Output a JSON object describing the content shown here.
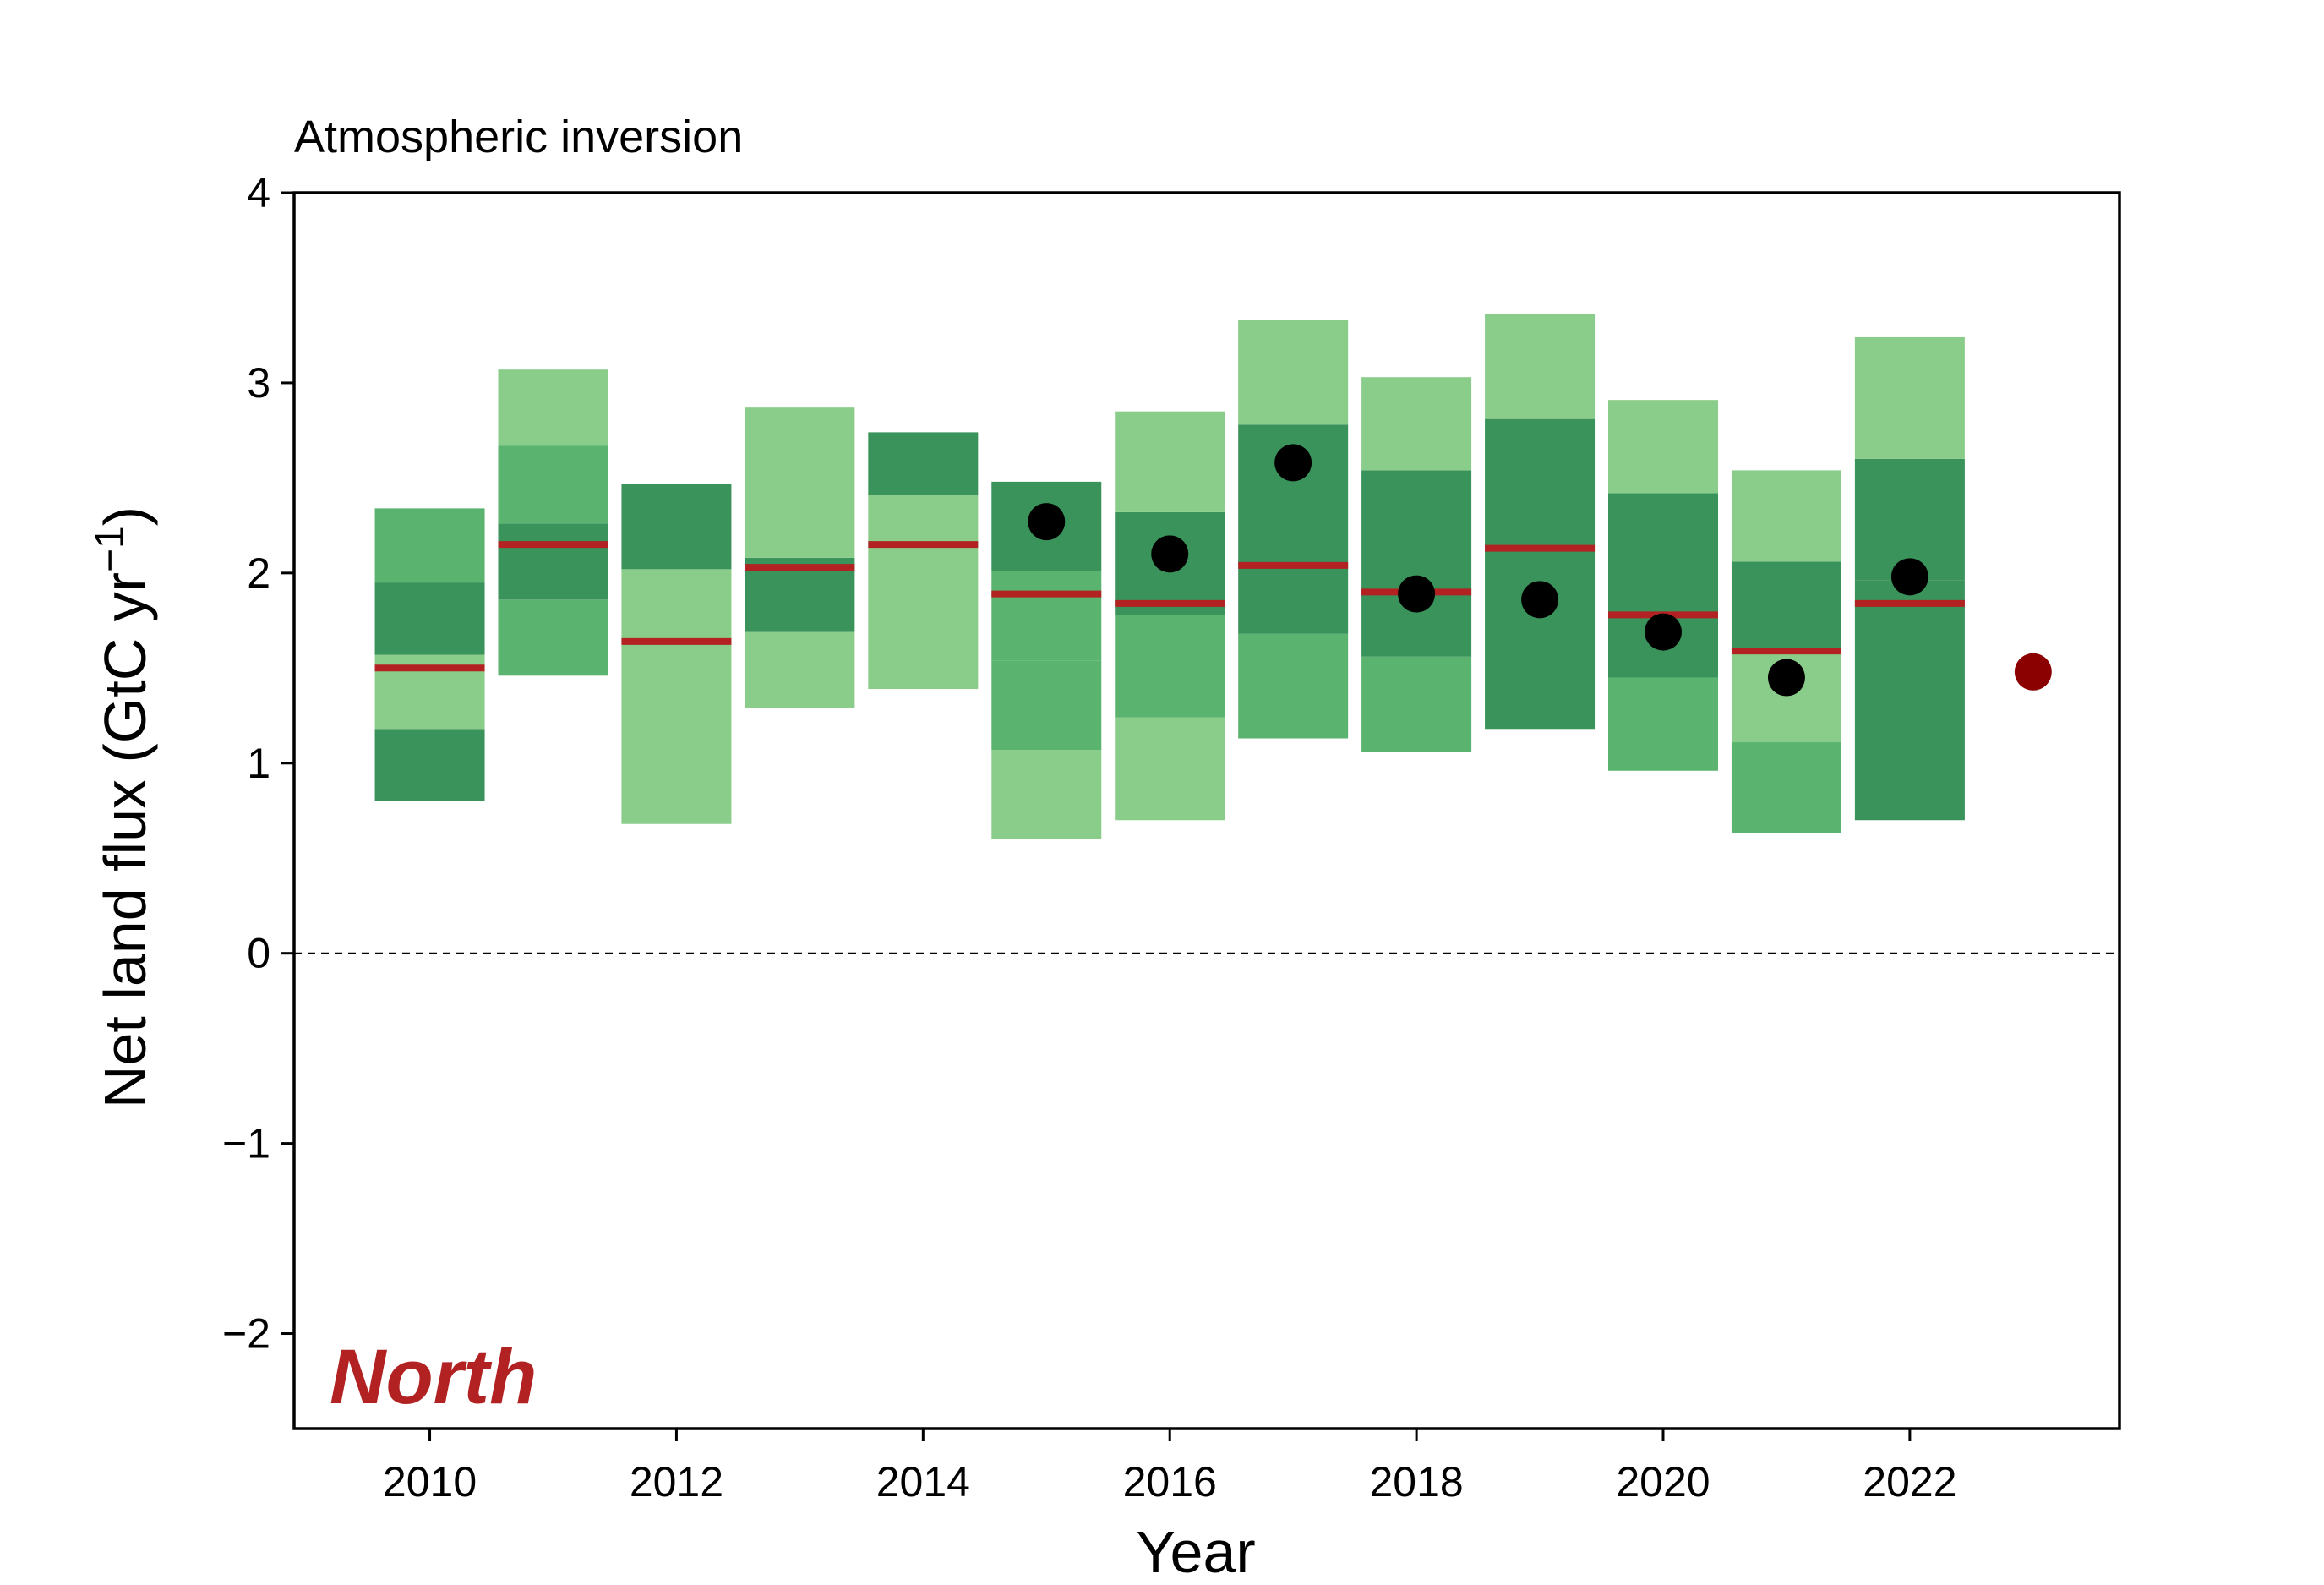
{
  "chart_data": {
    "type": "bar",
    "title": "Atmospheric inversion",
    "region_label": "North",
    "xlabel": "Year",
    "ylabel_main": "Net land flux (GtC yr",
    "ylabel_sup": "−1",
    "ylabel_close": ")",
    "xlim": [
      2008.9,
      2023.7
    ],
    "ylim": [
      -2.5,
      4.0
    ],
    "xticks": [
      2010,
      2012,
      2014,
      2016,
      2018,
      2020,
      2022
    ],
    "yticks": [
      -2,
      -1,
      0,
      1,
      2,
      3,
      4
    ],
    "ytick_labels": [
      "−2",
      "−1",
      "0",
      "1",
      "2",
      "3",
      "4"
    ],
    "zero_line": 0,
    "grid": false,
    "legend": "none",
    "colors": {
      "light": "#8acd8a",
      "mid": "#5ab46f",
      "dark": "#3a935b",
      "median": "#b22222",
      "point": "#000000",
      "point_2023": "#8b0000",
      "region_label": "#b22222"
    },
    "series": [
      {
        "x": 2010,
        "median": 1.5,
        "bands": [
          {
            "from": 0.8,
            "to": 1.18,
            "tone": "dark"
          },
          {
            "from": 1.18,
            "to": 1.57,
            "tone": "light"
          },
          {
            "from": 1.57,
            "to": 1.95,
            "tone": "dark"
          },
          {
            "from": 1.95,
            "to": 2.34,
            "tone": "mid"
          }
        ]
      },
      {
        "x": 2011,
        "median": 2.15,
        "bands": [
          {
            "from": 1.46,
            "to": 1.86,
            "tone": "mid"
          },
          {
            "from": 1.86,
            "to": 2.26,
            "tone": "dark"
          },
          {
            "from": 2.26,
            "to": 2.67,
            "tone": "mid"
          },
          {
            "from": 2.67,
            "to": 3.07,
            "tone": "light"
          }
        ]
      },
      {
        "x": 2012,
        "median": 1.64,
        "bands": [
          {
            "from": 0.68,
            "to": 2.02,
            "tone": "light"
          },
          {
            "from": 2.02,
            "to": 2.47,
            "tone": "dark"
          }
        ]
      },
      {
        "x": 2013,
        "median": 2.03,
        "bands": [
          {
            "from": 1.29,
            "to": 1.69,
            "tone": "light"
          },
          {
            "from": 1.69,
            "to": 2.08,
            "tone": "dark"
          },
          {
            "from": 2.08,
            "to": 2.87,
            "tone": "light"
          }
        ]
      },
      {
        "x": 2014,
        "median": 2.15,
        "bands": [
          {
            "from": 1.39,
            "to": 2.41,
            "tone": "light"
          },
          {
            "from": 2.41,
            "to": 2.74,
            "tone": "dark"
          }
        ]
      },
      {
        "x": 2015,
        "median": 1.89,
        "point": 2.27,
        "bands": [
          {
            "from": 0.6,
            "to": 1.07,
            "tone": "light"
          },
          {
            "from": 1.07,
            "to": 1.54,
            "tone": "mid"
          },
          {
            "from": 1.54,
            "to": 2.01,
            "tone": "mid"
          },
          {
            "from": 2.01,
            "to": 2.48,
            "tone": "dark"
          }
        ]
      },
      {
        "x": 2016,
        "median": 1.84,
        "point": 2.1,
        "bands": [
          {
            "from": 0.7,
            "to": 1.24,
            "tone": "light"
          },
          {
            "from": 1.24,
            "to": 1.78,
            "tone": "mid"
          },
          {
            "from": 1.78,
            "to": 2.32,
            "tone": "dark"
          },
          {
            "from": 2.32,
            "to": 2.85,
            "tone": "light"
          }
        ]
      },
      {
        "x": 2017,
        "median": 2.04,
        "point": 2.58,
        "bands": [
          {
            "from": 1.13,
            "to": 1.68,
            "tone": "mid"
          },
          {
            "from": 1.68,
            "to": 2.78,
            "tone": "dark"
          },
          {
            "from": 2.78,
            "to": 3.33,
            "tone": "light"
          }
        ]
      },
      {
        "x": 2018,
        "median": 1.9,
        "point": 1.89,
        "bands": [
          {
            "from": 1.06,
            "to": 1.56,
            "tone": "mid"
          },
          {
            "from": 1.56,
            "to": 2.54,
            "tone": "dark"
          },
          {
            "from": 2.54,
            "to": 3.03,
            "tone": "light"
          }
        ]
      },
      {
        "x": 2019,
        "median": 2.13,
        "point": 1.86,
        "bands": [
          {
            "from": 1.18,
            "to": 2.81,
            "tone": "dark"
          },
          {
            "from": 2.81,
            "to": 3.36,
            "tone": "light"
          }
        ]
      },
      {
        "x": 2020,
        "median": 1.78,
        "point": 1.69,
        "bands": [
          {
            "from": 0.96,
            "to": 1.45,
            "tone": "mid"
          },
          {
            "from": 1.45,
            "to": 2.42,
            "tone": "dark"
          },
          {
            "from": 2.42,
            "to": 2.91,
            "tone": "light"
          }
        ]
      },
      {
        "x": 2021,
        "median": 1.59,
        "point": 1.45,
        "bands": [
          {
            "from": 0.63,
            "to": 1.11,
            "tone": "mid"
          },
          {
            "from": 1.11,
            "to": 1.59,
            "tone": "light"
          },
          {
            "from": 1.59,
            "to": 2.06,
            "tone": "dark"
          },
          {
            "from": 2.06,
            "to": 2.54,
            "tone": "light"
          }
        ]
      },
      {
        "x": 2022,
        "median": 1.84,
        "point": 1.98,
        "bands": [
          {
            "from": 0.7,
            "to": 1.96,
            "tone": "dark"
          },
          {
            "from": 1.96,
            "to": 2.6,
            "tone": "dark"
          },
          {
            "from": 2.6,
            "to": 3.24,
            "tone": "light"
          }
        ]
      }
    ],
    "point_2023": {
      "x": 2023,
      "y": 1.48
    }
  }
}
